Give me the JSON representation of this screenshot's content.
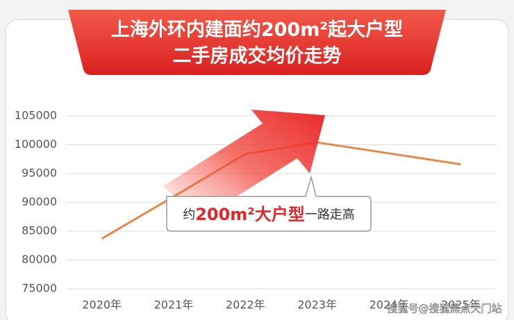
{
  "chart_data": {
    "type": "line",
    "title": "上海外环内建面约200m²起大户型",
    "subtitle": "二手房成交均价走势",
    "categories": [
      "2020年",
      "2021年",
      "2022年",
      "2023年",
      "2024年",
      "2025年"
    ],
    "series": [
      {
        "name": "二手房成交均价",
        "color": "#e3894a",
        "values": [
          83700,
          91000,
          98400,
          100400,
          98500,
          96600
        ]
      }
    ],
    "ylim": [
      75000,
      105000
    ],
    "yticks": [
      75000,
      80000,
      85000,
      90000,
      95000,
      100000,
      105000
    ],
    "grid": true,
    "annotation": {
      "prefix": "约",
      "highlight": "200m²大户型",
      "suffix": "一路走高"
    },
    "watermark": "搜狐号@搜狐黑点天门站"
  }
}
